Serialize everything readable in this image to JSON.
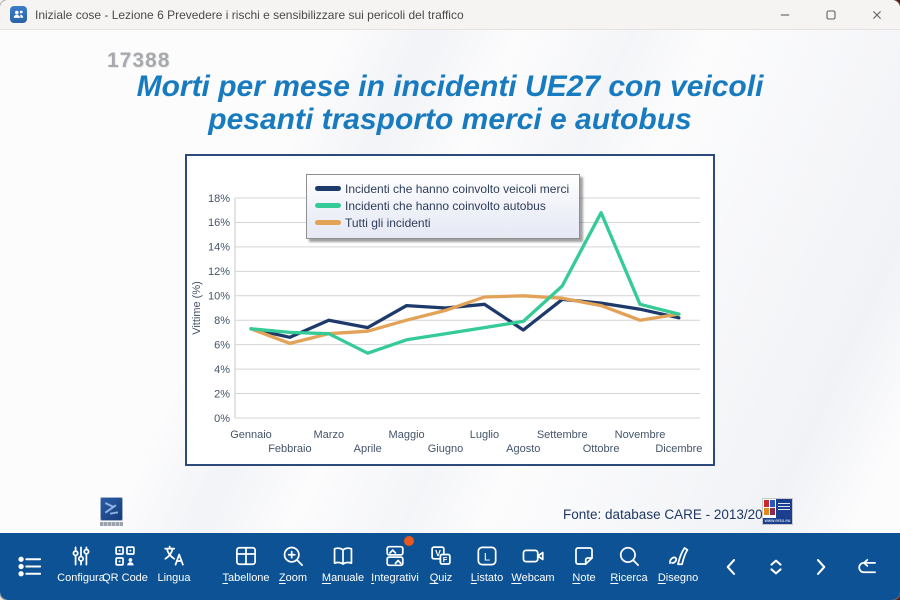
{
  "window": {
    "title": "Iniziale cose - Lezione 6 Prevedere i rischi e sensibilizzare sui pericoli del traffico"
  },
  "slide": {
    "watermark": "17388",
    "title_lines": [
      "Morti per mese in incidenti UE27 con veicoli",
      "pesanti trasporto merci e autobus"
    ],
    "source": "Fonte: database CARE - 2013/2023",
    "erso_text": "www.erso.eu"
  },
  "chart_data": {
    "type": "line",
    "title": "",
    "xlabel": "",
    "ylabel": "Vittime (%)",
    "ylim": [
      0,
      18
    ],
    "ytick_step": 2,
    "ytick_suffix": "%",
    "grid": true,
    "legend_position": "top-left",
    "categories": [
      "Gennaio",
      "Febbraio",
      "Marzo",
      "Aprile",
      "Maggio",
      "Giugno",
      "Luglio",
      "Agosto",
      "Settembre",
      "Ottobre",
      "Novembre",
      "Dicembre"
    ],
    "series": [
      {
        "name": "Incidenti che hanno coinvolto veicoli merci",
        "color": "#1e3a6b",
        "values": [
          7.3,
          6.6,
          8.0,
          7.4,
          9.2,
          9.0,
          9.3,
          7.2,
          9.7,
          9.4,
          8.9,
          8.2
        ]
      },
      {
        "name": "Incidenti che hanno coinvolto autobus",
        "color": "#35cb97",
        "values": [
          7.3,
          7.0,
          6.9,
          5.3,
          6.4,
          6.9,
          7.4,
          7.9,
          10.8,
          16.8,
          9.3,
          8.5
        ]
      },
      {
        "name": "Tutti gli incidenti",
        "color": "#e2a258",
        "values": [
          7.3,
          6.1,
          6.9,
          7.1,
          8.0,
          8.8,
          9.9,
          10.0,
          9.8,
          9.2,
          8.0,
          8.5
        ]
      }
    ]
  },
  "toolbar": {
    "items": [
      {
        "id": "menu",
        "icon": "menu-list-icon",
        "label": "",
        "accel": false,
        "badge": false
      },
      {
        "id": "configura",
        "icon": "sliders-icon",
        "label": "Configura",
        "accel": false,
        "badge": false
      },
      {
        "id": "qrcode",
        "icon": "qr-code-icon",
        "label": "QR Code",
        "accel": false,
        "badge": false
      },
      {
        "id": "lingua",
        "icon": "translate-icon",
        "label": "Lingua",
        "accel": false,
        "badge": false
      },
      {
        "id": "tabellone",
        "icon": "grid-icon",
        "label": "Tabellone",
        "accel": true,
        "badge": false
      },
      {
        "id": "zoom",
        "icon": "zoom-in-icon",
        "label": "Zoom",
        "accel": true,
        "badge": false
      },
      {
        "id": "manuale",
        "icon": "book-icon",
        "label": "Manuale",
        "accel": true,
        "badge": false
      },
      {
        "id": "integrativi",
        "icon": "images-icon",
        "label": "Integrativi",
        "accel": true,
        "badge": true
      },
      {
        "id": "quiz",
        "icon": "true-false-icon",
        "label": "Quiz",
        "accel": true,
        "badge": false
      },
      {
        "id": "listato",
        "icon": "list-square-icon",
        "label": "Listato",
        "accel": true,
        "badge": false
      },
      {
        "id": "webcam",
        "icon": "webcam-icon",
        "label": "Webcam",
        "accel": true,
        "badge": false
      },
      {
        "id": "note",
        "icon": "note-icon",
        "label": "Note",
        "accel": true,
        "badge": false
      },
      {
        "id": "ricerca",
        "icon": "search-icon",
        "label": "Ricerca",
        "accel": true,
        "badge": false
      },
      {
        "id": "disegno",
        "icon": "pen-icon",
        "label": "Disegno",
        "accel": true,
        "badge": false
      }
    ],
    "nav": [
      {
        "id": "prev",
        "icon": "chevron-left-icon"
      },
      {
        "id": "scroll",
        "icon": "chevrons-up-down-icon"
      },
      {
        "id": "next",
        "icon": "chevron-right-icon"
      },
      {
        "id": "return",
        "icon": "return-arrow-icon"
      }
    ]
  },
  "colors": {
    "toolbar_bg": "#0d5294",
    "slide_title": "#187bc0",
    "source_text": "#1f3864",
    "badge": "#e8571d",
    "axis_text": "#44546a",
    "gridline": "#d4d4d4"
  }
}
